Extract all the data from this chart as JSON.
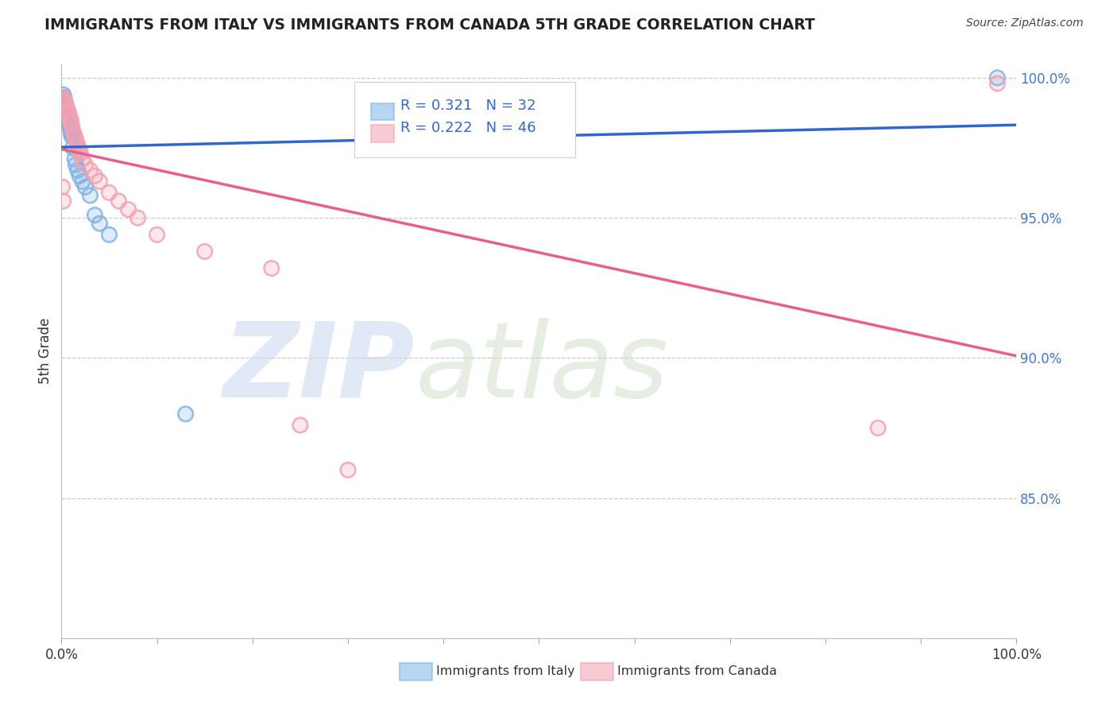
{
  "title": "IMMIGRANTS FROM ITALY VS IMMIGRANTS FROM CANADA 5TH GRADE CORRELATION CHART",
  "source": "Source: ZipAtlas.com",
  "ylabel": "5th Grade",
  "legend_labels": [
    "Immigrants from Italy",
    "Immigrants from Canada"
  ],
  "blue_color": "#7EB3E8",
  "pink_color": "#F4A0B0",
  "blue_line_color": "#3366CC",
  "pink_line_color": "#E8608A",
  "r_italy": "0.321",
  "n_italy": "32",
  "r_canada": "0.222",
  "n_canada": "46",
  "watermark_zip": "ZIP",
  "watermark_atlas": "atlas",
  "xmin": 0.0,
  "xmax": 1.0,
  "ymin": 0.8,
  "ymax": 1.005,
  "right_yticks": [
    0.85,
    0.9,
    0.95,
    1.0
  ],
  "right_yticklabels": [
    "85.0%",
    "90.0%",
    "95.0%",
    "100.0%"
  ],
  "background_color": "#FFFFFF",
  "grid_color": "#CCCCCC",
  "italy_x": [
    0.001,
    0.002,
    0.002,
    0.003,
    0.003,
    0.003,
    0.004,
    0.004,
    0.005,
    0.005,
    0.006,
    0.006,
    0.007,
    0.007,
    0.008,
    0.009,
    0.01,
    0.01,
    0.011,
    0.012,
    0.014,
    0.015,
    0.017,
    0.019,
    0.022,
    0.025,
    0.03,
    0.035,
    0.04,
    0.05,
    0.13,
    0.98
  ],
  "italy_y": [
    0.992,
    0.993,
    0.994,
    0.991,
    0.992,
    0.993,
    0.989,
    0.991,
    0.988,
    0.99,
    0.987,
    0.988,
    0.986,
    0.987,
    0.984,
    0.982,
    0.98,
    0.981,
    0.979,
    0.975,
    0.971,
    0.969,
    0.967,
    0.965,
    0.963,
    0.961,
    0.958,
    0.951,
    0.948,
    0.944,
    0.88,
    1.0
  ],
  "canada_x": [
    0.001,
    0.002,
    0.002,
    0.003,
    0.003,
    0.004,
    0.004,
    0.005,
    0.005,
    0.006,
    0.006,
    0.007,
    0.007,
    0.008,
    0.008,
    0.009,
    0.01,
    0.01,
    0.011,
    0.012,
    0.013,
    0.014,
    0.015,
    0.016,
    0.017,
    0.018,
    0.019,
    0.02,
    0.022,
    0.025,
    0.03,
    0.035,
    0.04,
    0.05,
    0.06,
    0.07,
    0.08,
    0.1,
    0.15,
    0.22,
    0.25,
    0.3,
    0.001,
    0.002,
    0.855,
    0.98
  ],
  "canada_y": [
    0.992,
    0.992,
    0.993,
    0.991,
    0.992,
    0.99,
    0.991,
    0.989,
    0.99,
    0.988,
    0.989,
    0.987,
    0.988,
    0.986,
    0.987,
    0.985,
    0.984,
    0.985,
    0.983,
    0.981,
    0.98,
    0.979,
    0.978,
    0.977,
    0.976,
    0.975,
    0.974,
    0.973,
    0.971,
    0.969,
    0.967,
    0.965,
    0.963,
    0.959,
    0.956,
    0.953,
    0.95,
    0.944,
    0.938,
    0.932,
    0.876,
    0.86,
    0.961,
    0.956,
    0.875,
    0.998
  ]
}
